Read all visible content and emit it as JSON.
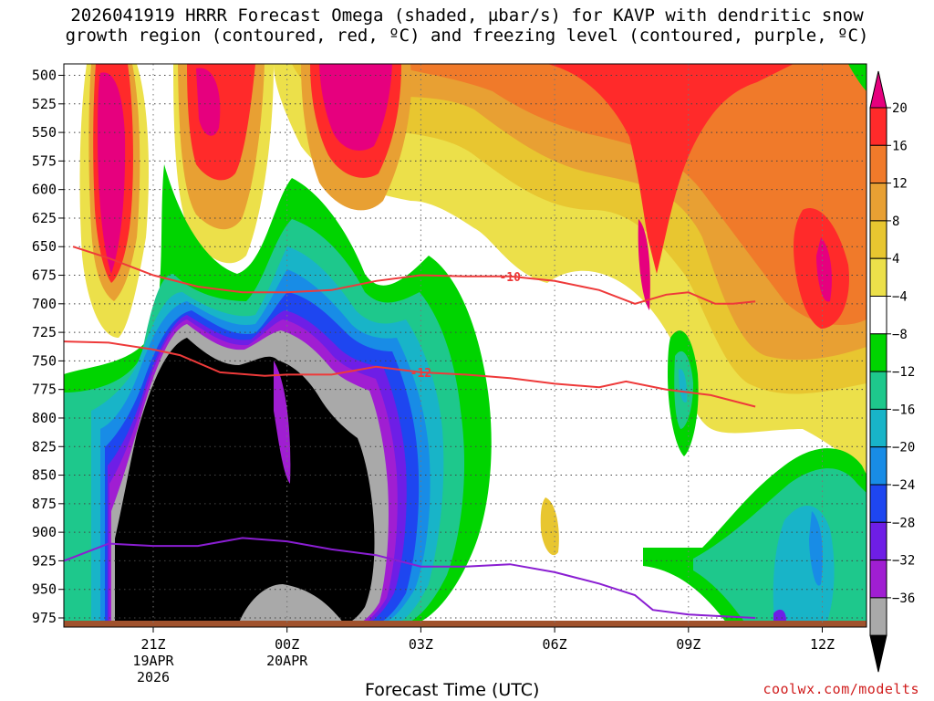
{
  "chart_data": {
    "type": "heatmap",
    "title_line1": "2026041919 HRRR Forecast Omega (shaded, µbar/s) for KAVP with dendritic snow",
    "title_line2": "growth region (contoured, red, ºC) and freezing level (contoured, purple, ºC)",
    "xlabel": "Forecast Time (UTC)",
    "credit": "coolwx.com/modelts",
    "y_ticks": [
      500,
      525,
      550,
      575,
      600,
      625,
      650,
      675,
      700,
      725,
      750,
      775,
      800,
      825,
      850,
      875,
      900,
      925,
      950,
      975
    ],
    "ylim": [
      490,
      983
    ],
    "x_hours": [
      -2,
      13.5
    ],
    "x_ticks": [
      {
        "hour": 0,
        "label": "21Z",
        "sub1": "19APR",
        "sub2": "2026"
      },
      {
        "hour": 3,
        "label": "00Z",
        "sub1": "20APR",
        "sub2": ""
      },
      {
        "hour": 6,
        "label": "03Z",
        "sub1": "",
        "sub2": ""
      },
      {
        "hour": 9,
        "label": "06Z",
        "sub1": "",
        "sub2": ""
      },
      {
        "hour": 12,
        "label": "09Z",
        "sub1": "",
        "sub2": ""
      },
      {
        "hour": 15,
        "label": "12Z",
        "sub1": "",
        "sub2": ""
      }
    ],
    "colorbar": {
      "labels": [
        "20",
        "16",
        "12",
        "8",
        "4",
        "−4",
        "−8",
        "−12",
        "−16",
        "−20",
        "−24",
        "−28",
        "−32",
        "−36"
      ],
      "colors": [
        "#ff2a2a",
        "#f07a2a",
        "#e8a033",
        "#e8c630",
        "#ece04a",
        "#ffffff",
        "#00d400",
        "#1ec88c",
        "#18b4c8",
        "#188ce6",
        "#1e46f0",
        "#6e1ee6",
        "#a01ed2",
        "#a9a9a9"
      ],
      "top_color": "#e6007e",
      "bottom_color": "#000000"
    },
    "dgz_contours": [
      {
        "label": "-10",
        "points": [
          [
            -1.8,
            650
          ],
          [
            -1,
            660
          ],
          [
            0,
            675
          ],
          [
            1,
            685
          ],
          [
            2,
            690
          ],
          [
            3,
            690
          ],
          [
            4,
            688
          ],
          [
            5,
            680
          ],
          [
            6,
            675
          ],
          [
            7,
            676
          ],
          [
            8,
            676
          ],
          [
            9,
            680
          ],
          [
            10,
            688
          ],
          [
            10.8,
            700
          ],
          [
            11.5,
            692
          ],
          [
            12,
            690
          ],
          [
            12.6,
            700
          ],
          [
            13,
            700
          ],
          [
            13.5,
            698
          ]
        ]
      },
      {
        "label": "-12",
        "points": [
          [
            -2,
            733
          ],
          [
            -1,
            734
          ],
          [
            0,
            740
          ],
          [
            0.6,
            745
          ],
          [
            1.5,
            760
          ],
          [
            2.5,
            763
          ],
          [
            3,
            762
          ],
          [
            4,
            762
          ],
          [
            5,
            755
          ],
          [
            6,
            760
          ],
          [
            7,
            762
          ],
          [
            8,
            765
          ],
          [
            9,
            770
          ],
          [
            10,
            773
          ],
          [
            10.6,
            768
          ],
          [
            11.5,
            775
          ],
          [
            12.5,
            780
          ],
          [
            13.5,
            790
          ]
        ]
      }
    ],
    "freezing_level": {
      "points": [
        [
          -2,
          925
        ],
        [
          -1,
          910
        ],
        [
          0,
          912
        ],
        [
          1,
          912
        ],
        [
          2,
          905
        ],
        [
          3,
          908
        ],
        [
          4,
          915
        ],
        [
          5,
          920
        ],
        [
          6,
          930
        ],
        [
          7,
          930
        ],
        [
          8,
          928
        ],
        [
          9,
          935
        ],
        [
          10,
          945
        ],
        [
          10.8,
          955
        ],
        [
          11.2,
          968
        ],
        [
          12,
          972
        ],
        [
          13.5,
          975
        ]
      ]
    }
  }
}
